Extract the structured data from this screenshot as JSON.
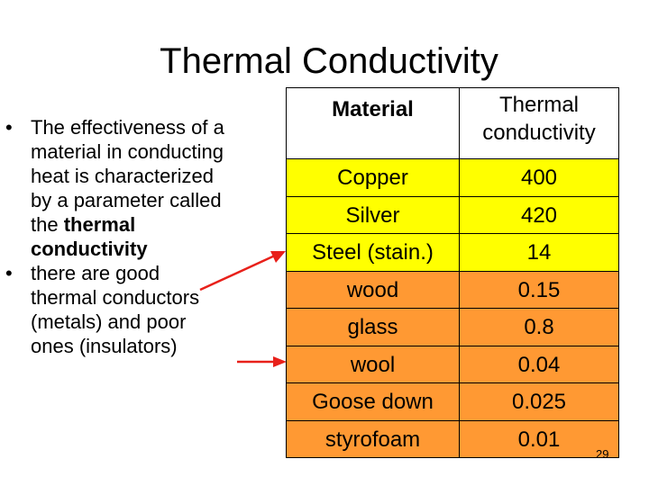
{
  "title": "Thermal Conductivity",
  "bullets": [
    {
      "marker": "•",
      "lines": [
        "The effectiveness of a",
        "material in conducting",
        "heat is characterized",
        "by a parameter called"
      ],
      "plain_lead": "the",
      "bold_lines": [
        "thermal",
        "conductivity"
      ]
    },
    {
      "marker": "•",
      "lines": [
        "there are good",
        "thermal conductors",
        "(metals) and poor",
        "ones (insulators)"
      ]
    }
  ],
  "table": {
    "headers": {
      "material": "Material",
      "conductivity_line1": "Thermal",
      "conductivity_line2": "conductivity"
    },
    "rows": [
      {
        "material": "Copper",
        "value": "400",
        "group": "metal"
      },
      {
        "material": "Silver",
        "value": "420",
        "group": "metal"
      },
      {
        "material": "Steel (stain.)",
        "value": "14",
        "group": "metal"
      },
      {
        "material": "wood",
        "value": "0.15",
        "group": "insulator"
      },
      {
        "material": "glass",
        "value": "0.8",
        "group": "insulator"
      },
      {
        "material": "wool",
        "value": "0.04",
        "group": "insulator"
      },
      {
        "material": "Goose down",
        "value": "0.025",
        "group": "insulator"
      },
      {
        "material": "styrofoam",
        "value": "0.01",
        "group": "insulator"
      }
    ]
  },
  "colors": {
    "metal_fill": "#ffff00",
    "insulator_fill": "#ff9933",
    "arrow": "#e8201a"
  },
  "page_number": "29"
}
